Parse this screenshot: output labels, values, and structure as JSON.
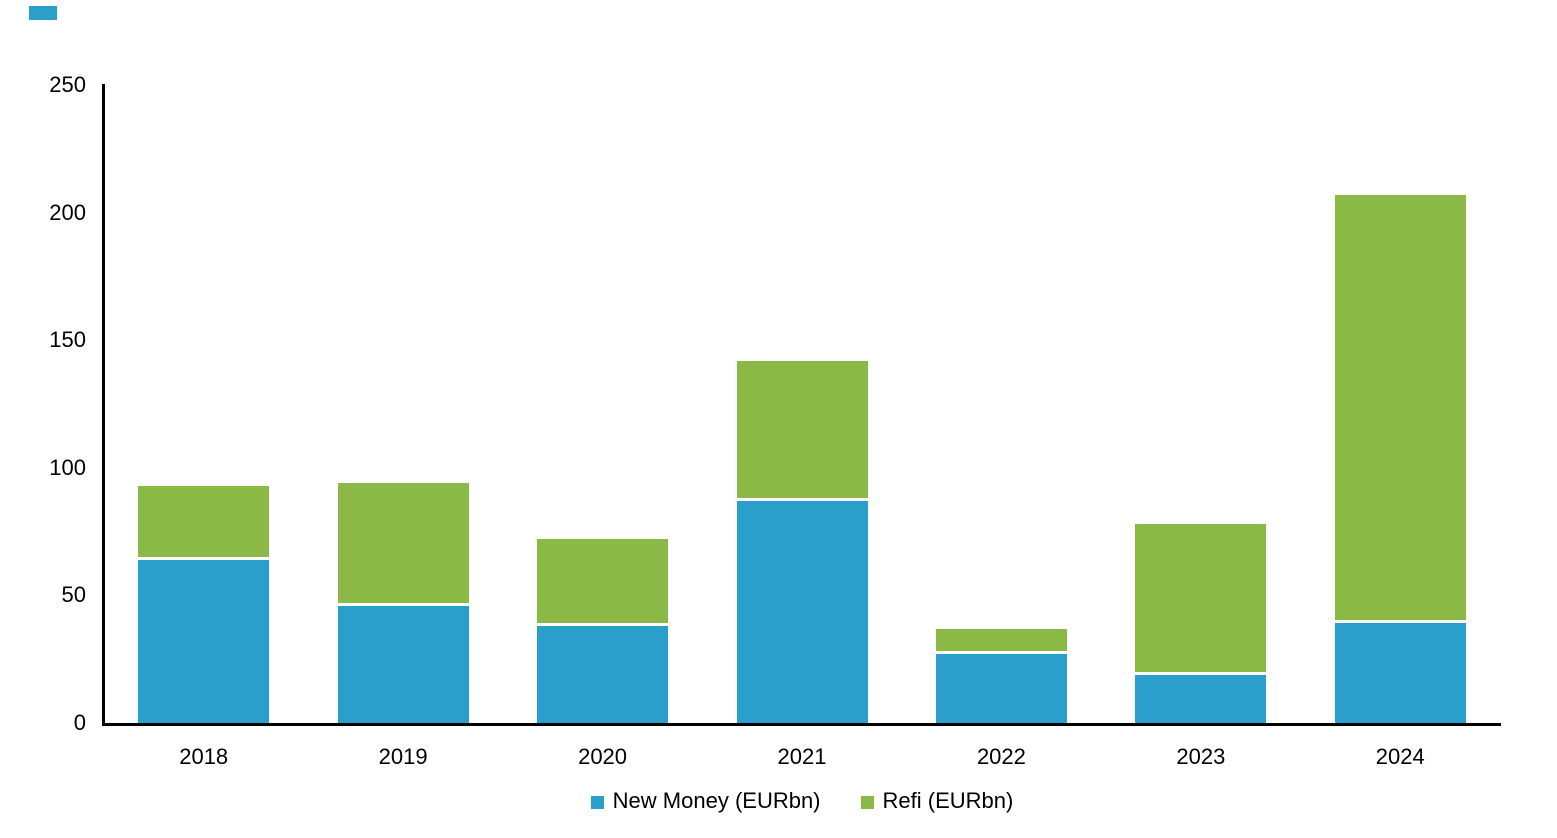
{
  "page": {
    "background": "#ffffff",
    "accent_square_color": "#2B9FCB"
  },
  "chart_data": {
    "type": "bar",
    "stacked": true,
    "title": "",
    "xlabel": "",
    "ylabel": "",
    "categories": [
      "2018",
      "2019",
      "2020",
      "2021",
      "2022",
      "2023",
      "2024"
    ],
    "series": [
      {
        "name": "New Money (EURbn)",
        "color": "#2B9FCB",
        "values": [
          64,
          46,
          38,
          87,
          27,
          19,
          39
        ]
      },
      {
        "name": "Refi (EURbn)",
        "color": "#8ABA45",
        "values": [
          29,
          48,
          34,
          55,
          10,
          59,
          168
        ]
      }
    ],
    "totals": [
      93,
      94,
      72,
      142,
      37,
      78,
      207
    ],
    "ylim": [
      0,
      250
    ],
    "yticks": [
      0,
      50,
      100,
      150,
      200,
      250
    ],
    "grid": false,
    "legend_position": "bottom-center",
    "axis_color": "#000000",
    "text_color": "#000000",
    "separator_color": "#ffffff"
  }
}
